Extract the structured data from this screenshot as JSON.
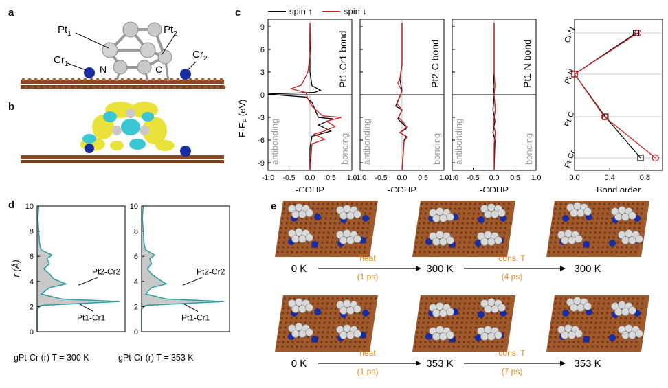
{
  "panels": {
    "a": {
      "label": "a",
      "atoms": [
        "Pt1",
        "Pt2",
        "Cr1",
        "Cr2",
        "N",
        "C"
      ]
    },
    "b": {
      "label": "b"
    },
    "c": {
      "label": "c",
      "legend": [
        {
          "name": "spin ↑",
          "color": "#000000"
        },
        {
          "name": "spin ↓",
          "color": "#d11f1f"
        }
      ],
      "ylabel": "E-E_F (eV)",
      "yticks": [
        "9",
        "6",
        "3",
        "0",
        "-3",
        "-6",
        "-9"
      ],
      "xticks": [
        "-1.0",
        "-0.5",
        "0.0",
        "0.5",
        "1.0"
      ],
      "xlabel": "-COHP",
      "antibonding": "antibonding",
      "bonding": "bonding",
      "bond_titles": [
        "Pt1-Cr1 bond",
        "Pt2-C bond",
        "Pt1-N bond"
      ]
    },
    "c_bondorder": {
      "xlabel": "Bond order",
      "xticks": [
        "0.0",
        "0.4",
        "0.8"
      ],
      "categories": [
        "Cr-N",
        "Pt-N",
        "Pt-C",
        "Pt-Cr"
      ]
    },
    "d": {
      "label": "d",
      "ylabel": "r (Å)",
      "yticks": [
        "10",
        "8",
        "6",
        "4",
        "2",
        "0"
      ],
      "peak_labels": [
        "Pt2-Cr2",
        "Pt1-Cr1"
      ],
      "xlabels": [
        "gPt-Cr (r) T = 300 K",
        "gPt-Cr (r) T = 353 K"
      ]
    },
    "e": {
      "label": "e",
      "rows": [
        {
          "temps": [
            "0 K",
            "300 K",
            "300 K"
          ],
          "step1": "heat",
          "step1_time": "(1 ps)",
          "step2": "cons. T",
          "step2_time": "(4 ps)"
        },
        {
          "temps": [
            "0 K",
            "353 K",
            "353 K"
          ],
          "step1": "heat",
          "step1_time": "(1 ps)",
          "step2": "cons. T",
          "step2_time": "(7 ps)"
        }
      ]
    }
  },
  "chart_data": [
    {
      "type": "line",
      "title": "Pt1-Cr1 bond",
      "xlabel": "-COHP",
      "ylabel": "E-E_F (eV)",
      "xlim": [
        -1.0,
        1.0
      ],
      "ylim": [
        -10,
        10
      ],
      "series": [
        {
          "name": "spin ↑",
          "color": "#000000",
          "points": [
            [
              0,
              9.5
            ],
            [
              0,
              6
            ],
            [
              0,
              3
            ],
            [
              0.05,
              1.2
            ],
            [
              0.25,
              0.6
            ],
            [
              0.1,
              0.3
            ],
            [
              -1.0,
              0.1
            ],
            [
              -0.6,
              -0.1
            ],
            [
              -0.1,
              -0.3
            ],
            [
              0.05,
              -1
            ],
            [
              0.2,
              -3
            ],
            [
              0.55,
              -3.2
            ],
            [
              0.2,
              -4
            ],
            [
              0.5,
              -4.8
            ],
            [
              0.05,
              -5.5
            ],
            [
              0,
              -7
            ],
            [
              0,
              -10
            ]
          ]
        },
        {
          "name": "spin ↓",
          "color": "#d11f1f",
          "points": [
            [
              0,
              9.5
            ],
            [
              0.02,
              6
            ],
            [
              -0.05,
              3
            ],
            [
              -0.2,
              1.3
            ],
            [
              -0.45,
              0.8
            ],
            [
              -0.1,
              0.3
            ],
            [
              -0.05,
              -0.5
            ],
            [
              0.05,
              -1.5
            ],
            [
              0.3,
              -2.8
            ],
            [
              0.75,
              -3
            ],
            [
              0.4,
              -3.5
            ],
            [
              0.6,
              -4.2
            ],
            [
              0.35,
              -4.8
            ],
            [
              0.1,
              -5.2
            ],
            [
              0.35,
              -5.9
            ],
            [
              0.05,
              -6.5
            ],
            [
              0,
              -10
            ]
          ]
        }
      ]
    },
    {
      "type": "line",
      "title": "Pt2-C bond",
      "xlabel": "-COHP",
      "ylabel": "E-E_F (eV)",
      "xlim": [
        -1.0,
        1.0
      ],
      "ylim": [
        -10,
        10
      ],
      "series": [
        {
          "name": "spin ↑",
          "color": "#000000",
          "points": [
            [
              0,
              9.5
            ],
            [
              0,
              4
            ],
            [
              -0.05,
              2
            ],
            [
              0,
              0.5
            ],
            [
              -0.15,
              -1.5
            ],
            [
              0,
              -2
            ],
            [
              -0.1,
              -3.2
            ],
            [
              0.05,
              -4
            ],
            [
              0.1,
              -4.5
            ],
            [
              -0.05,
              -5
            ],
            [
              0.1,
              -5.5
            ],
            [
              0.05,
              -6
            ],
            [
              0,
              -10
            ]
          ]
        },
        {
          "name": "spin ↓",
          "color": "#d11f1f",
          "points": [
            [
              0,
              9.5
            ],
            [
              0,
              4
            ],
            [
              -0.05,
              2.2
            ],
            [
              -0.1,
              1.5
            ],
            [
              0,
              0.5
            ],
            [
              -0.12,
              -1.2
            ],
            [
              0,
              -2
            ],
            [
              -0.08,
              -3
            ],
            [
              0.05,
              -3.8
            ],
            [
              0.12,
              -4.3
            ],
            [
              -0.05,
              -5
            ],
            [
              0.12,
              -5.6
            ],
            [
              0.05,
              -6.2
            ],
            [
              0,
              -10
            ]
          ]
        }
      ]
    },
    {
      "type": "line",
      "title": "Pt1-N bond",
      "xlabel": "-COHP",
      "ylabel": "E-E_F (eV)",
      "xlim": [
        -1.0,
        1.0
      ],
      "ylim": [
        -10,
        10
      ],
      "series": [
        {
          "name": "spin ↑",
          "color": "#000000",
          "points": [
            [
              0,
              9.5
            ],
            [
              0,
              3
            ],
            [
              -0.02,
              1
            ],
            [
              0,
              0
            ],
            [
              -0.03,
              -2
            ],
            [
              0.02,
              -3.5
            ],
            [
              -0.03,
              -5
            ],
            [
              0.02,
              -6
            ],
            [
              0,
              -10
            ]
          ]
        },
        {
          "name": "spin ↓",
          "color": "#d11f1f",
          "points": [
            [
              0,
              9.5
            ],
            [
              0,
              3
            ],
            [
              0.02,
              1.2
            ],
            [
              0,
              0
            ],
            [
              0.03,
              -2
            ],
            [
              -0.02,
              -3.8
            ],
            [
              0.03,
              -5
            ],
            [
              0,
              -6.5
            ],
            [
              0,
              -10
            ]
          ]
        }
      ]
    },
    {
      "type": "line",
      "xlabel": "Bond order",
      "xlim": [
        0.0,
        1.0
      ],
      "categories": [
        "Cr-N",
        "Pt-N",
        "Pt-C",
        "Pt-Cr"
      ],
      "series": [
        {
          "name": "spin ↑",
          "color": "#000000",
          "marker": "square",
          "values": [
            0.7,
            0.0,
            0.35,
            0.75
          ]
        },
        {
          "name": "spin ↓",
          "color": "#d11f1f",
          "marker": "circle",
          "values": [
            0.72,
            0.0,
            0.34,
            0.92
          ]
        }
      ]
    },
    {
      "type": "area",
      "xlabel": "gPt-Cr (r) T = 300 K",
      "ylabel": "r (Å)",
      "ylim": [
        0,
        10
      ],
      "series": [
        {
          "name": "",
          "color": "#2a9d9d",
          "points": [
            [
              0,
              0
            ],
            [
              0,
              1.8
            ],
            [
              0.05,
              2.1
            ],
            [
              1.0,
              2.4
            ],
            [
              0.3,
              2.6
            ],
            [
              0.05,
              3.0
            ],
            [
              0.15,
              3.5
            ],
            [
              0.35,
              3.8
            ],
            [
              0.2,
              4.2
            ],
            [
              0.15,
              4.6
            ],
            [
              0.08,
              5.0
            ],
            [
              0.15,
              5.4
            ],
            [
              0.12,
              5.8
            ],
            [
              0.18,
              6.1
            ],
            [
              0.05,
              6.5
            ],
            [
              0.03,
              7.0
            ],
            [
              0.02,
              8
            ],
            [
              0.01,
              9
            ],
            [
              0.02,
              10
            ]
          ]
        }
      ]
    },
    {
      "type": "area",
      "xlabel": "gPt-Cr (r) T = 353 K",
      "ylabel": "r (Å)",
      "ylim": [
        0,
        10
      ],
      "series": [
        {
          "name": "",
          "color": "#2a9d9d",
          "points": [
            [
              0,
              0
            ],
            [
              0,
              1.8
            ],
            [
              0.05,
              2.1
            ],
            [
              1.0,
              2.4
            ],
            [
              0.3,
              2.6
            ],
            [
              0.05,
              3.0
            ],
            [
              0.12,
              3.5
            ],
            [
              0.3,
              3.8
            ],
            [
              0.2,
              4.2
            ],
            [
              0.12,
              4.6
            ],
            [
              0.07,
              5.0
            ],
            [
              0.12,
              5.4
            ],
            [
              0.1,
              5.8
            ],
            [
              0.16,
              6.1
            ],
            [
              0.05,
              6.5
            ],
            [
              0.03,
              7.0
            ],
            [
              0.02,
              8
            ],
            [
              0.01,
              9
            ],
            [
              0.02,
              10
            ]
          ]
        }
      ]
    }
  ]
}
